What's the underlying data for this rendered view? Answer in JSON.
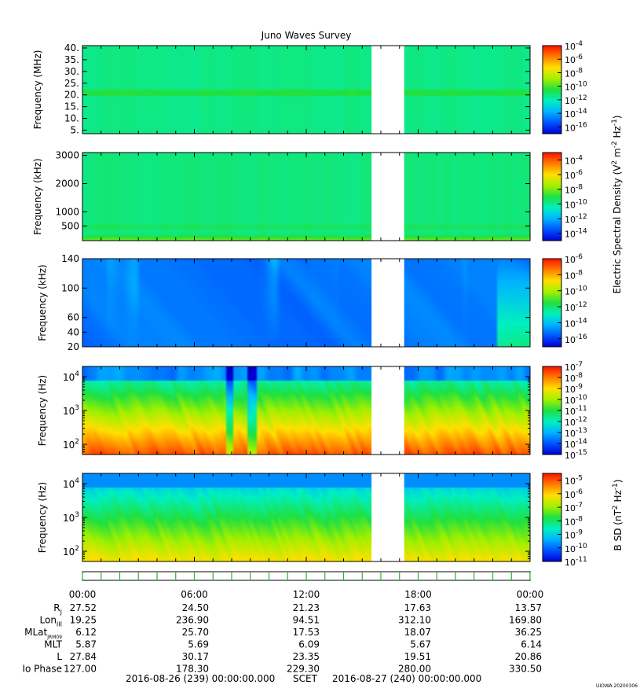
{
  "chart_data": {
    "type": "heatmap",
    "title": "Juno Waves Survey",
    "data_gap": {
      "start": "15:30",
      "end": "17:15"
    },
    "panels": [
      {
        "id": "hfr-high",
        "ylabel": "Frequency (MHz)",
        "yscale": "linear",
        "ylim": [
          3.5,
          41
        ],
        "yticks": [
          {
            "v": 5,
            "label": "5."
          },
          {
            "v": 10,
            "label": "10."
          },
          {
            "v": 15,
            "label": "15."
          },
          {
            "v": 20,
            "label": "20."
          },
          {
            "v": 25,
            "label": "25."
          },
          {
            "v": 30,
            "label": "30."
          },
          {
            "v": 35,
            "label": "35."
          },
          {
            "v": 40,
            "label": "40."
          }
        ],
        "colorbar": {
          "exp_min": -17,
          "exp_max": -4,
          "ticks": [
            -4,
            -6,
            -8,
            -10,
            -12,
            -14,
            -16
          ]
        }
      },
      {
        "id": "hfr-low",
        "ylabel": "Frequency (kHz)",
        "yscale": "linear",
        "ylim": [
          -20,
          3100
        ],
        "yticks": [
          {
            "v": 500,
            "label": "500"
          },
          {
            "v": 1000,
            "label": "1000"
          },
          {
            "v": 2000,
            "label": "2000"
          },
          {
            "v": 3000,
            "label": "3000"
          }
        ],
        "colorbar": {
          "exp_min": -15,
          "exp_max": -3,
          "ticks": [
            -4,
            -6,
            -8,
            -10,
            -12,
            -14
          ]
        }
      },
      {
        "id": "lfr-high",
        "ylabel": "Frequency (kHz)",
        "yscale": "linear",
        "ylim": [
          20,
          140
        ],
        "yticks": [
          {
            "v": 20,
            "label": "20"
          },
          {
            "v": 40,
            "label": "40"
          },
          {
            "v": 60,
            "label": "60"
          },
          {
            "v": 100,
            "label": "100"
          },
          {
            "v": 140,
            "label": "140"
          }
        ],
        "colorbar": {
          "exp_min": -17,
          "exp_max": -6,
          "ticks": [
            -6,
            -8,
            -10,
            -12,
            -14,
            -16
          ]
        }
      },
      {
        "id": "lfr-low",
        "ylabel": "Frequency (Hz)",
        "yscale": "log",
        "ylim": [
          50,
          20000
        ],
        "yticks": [
          {
            "v": 100,
            "label": "10",
            "sup": "2"
          },
          {
            "v": 1000,
            "label": "10",
            "sup": "3"
          },
          {
            "v": 10000,
            "label": "10",
            "sup": "4"
          }
        ],
        "colorbar": {
          "exp_min": -15,
          "exp_max": -7,
          "ticks": [
            -7,
            -8,
            -9,
            -10,
            -11,
            -12,
            -13,
            -14,
            -15
          ]
        }
      },
      {
        "id": "magnetic",
        "ylabel": "Frequency (Hz)",
        "yscale": "log",
        "ylim": [
          50,
          20000
        ],
        "yticks": [
          {
            "v": 100,
            "label": "10",
            "sup": "2"
          },
          {
            "v": 1000,
            "label": "10",
            "sup": "3"
          },
          {
            "v": 10000,
            "label": "10",
            "sup": "4"
          }
        ],
        "colorbar": {
          "exp_min": -11,
          "exp_max": -4.5,
          "ticks": [
            -5,
            -6,
            -7,
            -8,
            -9,
            -10,
            -11
          ]
        }
      }
    ],
    "colorbar_labels": [
      {
        "text": "Electric Spectral Density (V",
        "sup1": "2",
        "mid": " m",
        "sup2": "-2",
        "mid2": " Hz",
        "sup3": "-1",
        "tail": ")"
      },
      {
        "text": "B SD (nT",
        "sup1": "2",
        "mid": " Hz",
        "sup2": "-1",
        "mid2": "",
        "sup3": "",
        "tail": ")"
      }
    ],
    "time_axis": {
      "ticks": [
        "00:00",
        "06:00",
        "12:00",
        "18:00",
        "00:00"
      ],
      "hours": [
        0,
        6,
        12,
        18,
        24
      ]
    },
    "ephemeris": {
      "rows": [
        {
          "label": "R",
          "sub": "J",
          "values": [
            "27.52",
            "24.50",
            "21.23",
            "17.63",
            "13.57"
          ]
        },
        {
          "label": "Lon",
          "sub": "III",
          "values": [
            "19.25",
            "236.90",
            "94.51",
            "312.10",
            "169.80"
          ]
        },
        {
          "label": "MLat",
          "sub": "JRM09",
          "values": [
            "6.12",
            "25.70",
            "17.53",
            "18.07",
            "36.25"
          ]
        },
        {
          "label": "MLT",
          "sub": "",
          "values": [
            "5.87",
            "5.69",
            "6.09",
            "5.67",
            "6.14"
          ]
        },
        {
          "label": "L",
          "sub": "",
          "values": [
            "27.84",
            "30.17",
            "23.35",
            "19.51",
            "20.86"
          ]
        },
        {
          "label": "Io Phase",
          "sub": "",
          "values": [
            "127.00",
            "178.30",
            "229.30",
            "280.00",
            "330.50"
          ]
        }
      ]
    },
    "footer": {
      "start": "2016-08-26 (239) 00:00:00.000",
      "label": "SCET",
      "end": "2016-08-27 (240) 00:00:00.000",
      "credit": "UIOWA 20200306"
    }
  }
}
